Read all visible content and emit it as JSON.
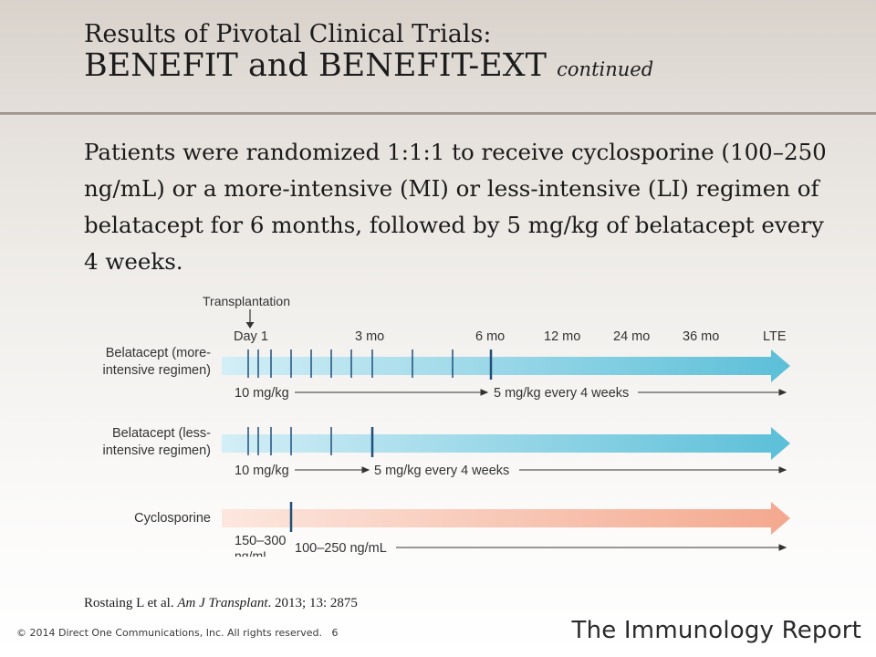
{
  "slide": {
    "title_line1": "Results of Pivotal Clinical Trials:",
    "title_line2": "BENEFIT and BENEFIT-EXT",
    "title_continued": "continued",
    "body": "Patients were randomized 1:1:1 to receive cyclosporine (100–250 ng/mL) or a more-intensive (MI) or less-intensive (LI) regimen of belatacept for 6 months, followed by 5 mg/kg of belatacept every 4 weeks.",
    "citation_authors": "Rostaing L et al.",
    "citation_journal": "Am J Transplant",
    "citation_details": ". 2013; 13: 2875",
    "footer_copyright": "© 2014 Direct One Communications, Inc. All rights reserved.",
    "footer_page": "6",
    "footer_brand": "The Immunology Report"
  },
  "diagram": {
    "transplantation_label": "Transplantation",
    "timepoints": [
      "Day 1",
      "3 mo",
      "6 mo",
      "12 mo",
      "24 mo",
      "36 mo",
      "LTE"
    ],
    "rows": [
      {
        "label_lines": [
          "Belatacept (more-",
          "intensive regimen)"
        ],
        "dose_initial": "10 mg/kg",
        "dose_maintenance": "5 mg/kg every 4 weeks"
      },
      {
        "label_lines": [
          "Belatacept (less-",
          "intensive regimen)"
        ],
        "dose_initial": "10 mg/kg",
        "dose_maintenance": "5 mg/kg every 4 weeks"
      },
      {
        "label_lines": [
          "Cyclosporine"
        ],
        "dose_initial_lines": [
          "150–300",
          "ng/mL"
        ],
        "dose_maintenance": "100–250 ng/mL"
      }
    ],
    "colors": {
      "belatacept_start": "#d3eef6",
      "belatacept_end": "#5bbfd8",
      "cyclosporine_start": "#fce7de",
      "cyclosporine_end": "#f4a88e",
      "tick": "#1f4f7a",
      "text": "#333333"
    }
  }
}
